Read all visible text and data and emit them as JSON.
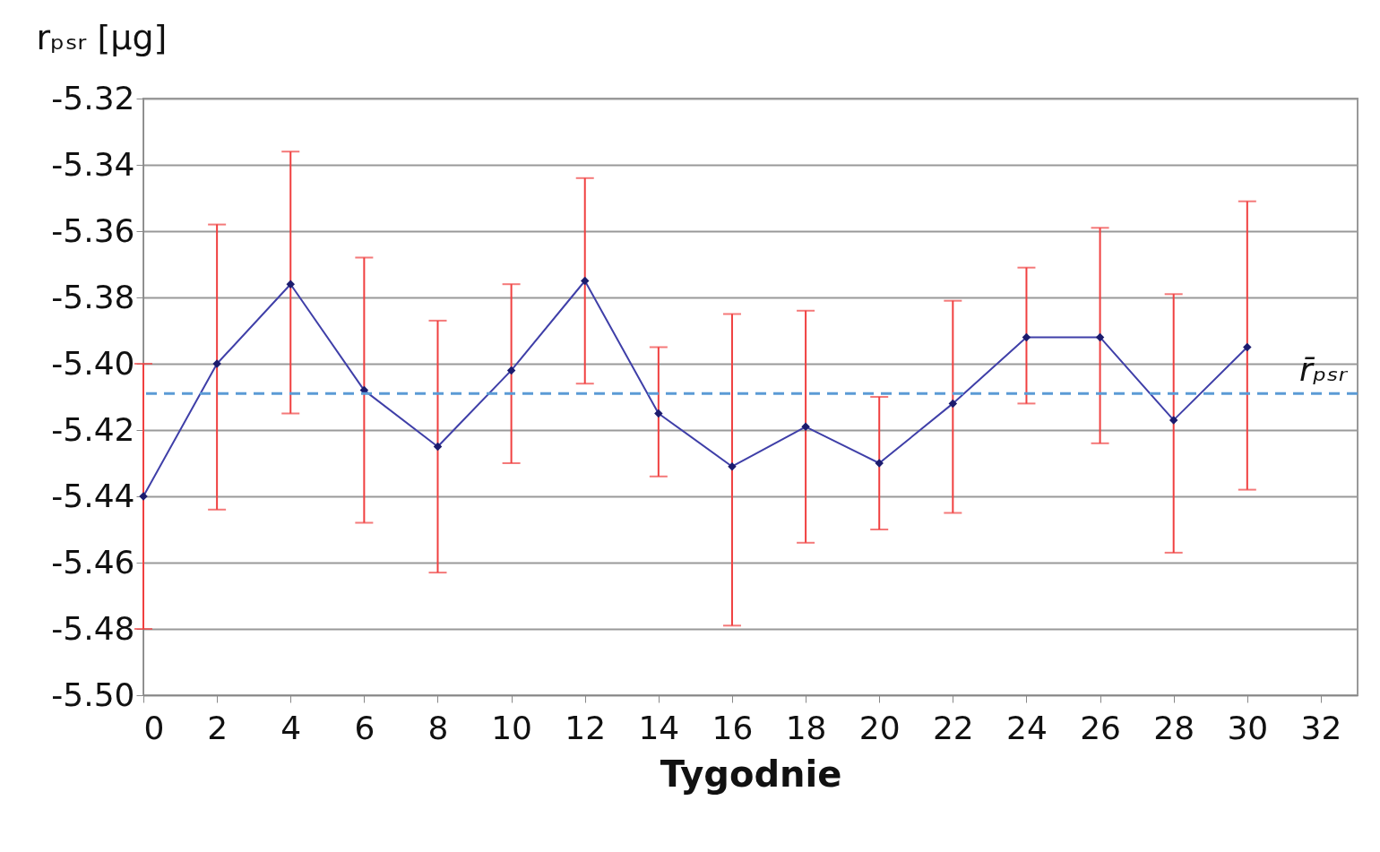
{
  "chart_data": {
    "type": "line",
    "xlabel": "Tygodnie",
    "ylabel": "rₚₛᵣ [µg]",
    "x": [
      0,
      2,
      4,
      6,
      8,
      10,
      12,
      14,
      16,
      18,
      20,
      22,
      24,
      26,
      28,
      30
    ],
    "series": [
      {
        "color": "#3f3fa8",
        "values": [
          -5.44,
          -5.4,
          -5.376,
          -5.408,
          -5.425,
          -5.402,
          -5.375,
          -5.415,
          -5.431,
          -5.419,
          -5.43,
          -5.412,
          -5.392,
          -5.392,
          -5.417,
          -5.395
        ],
        "errors": [
          [
            -5.48,
            -5.4
          ],
          [
            -5.444,
            -5.358
          ],
          [
            -5.415,
            -5.336
          ],
          [
            -5.448,
            -5.368
          ],
          [
            -5.463,
            -5.387
          ],
          [
            -5.43,
            -5.376
          ],
          [
            -5.406,
            -5.344
          ],
          [
            -5.434,
            -5.395
          ],
          [
            -5.479,
            -5.385
          ],
          [
            -5.454,
            -5.384
          ],
          [
            -5.45,
            -5.41
          ],
          [
            -5.445,
            -5.381
          ],
          [
            -5.412,
            -5.371
          ],
          [
            -5.424,
            -5.359
          ],
          [
            -5.457,
            -5.379
          ],
          [
            -5.438,
            -5.351
          ]
        ]
      }
    ],
    "xlim": [
      0,
      33
    ],
    "xticks": [
      0,
      2,
      4,
      6,
      8,
      10,
      12,
      14,
      16,
      18,
      20,
      22,
      24,
      26,
      28,
      30,
      32
    ],
    "ylim": [
      -5.5,
      -5.32
    ],
    "yticks": [
      {
        "value": -5.5,
        "label": "-5.50"
      },
      {
        "value": -5.48,
        "label": "-5.48"
      },
      {
        "value": -5.46,
        "label": "-5.46"
      },
      {
        "value": -5.44,
        "label": "-5.44"
      },
      {
        "value": -5.42,
        "label": "-5.42"
      },
      {
        "value": -5.4,
        "label": "-5.40"
      },
      {
        "value": -5.38,
        "label": "-5.38"
      },
      {
        "value": -5.36,
        "label": "-5.36"
      },
      {
        "value": -5.34,
        "label": "-5.34"
      },
      {
        "value": -5.32,
        "label": "-5.32"
      }
    ],
    "grid": "y",
    "marker": "diamond",
    "line_style": "solid",
    "ref_lines": [
      {
        "axis": "y",
        "value": -5.409,
        "label": "r̄ₚₛᵣ",
        "color": "#5b9bd5",
        "line_style": "dashed"
      }
    ]
  }
}
